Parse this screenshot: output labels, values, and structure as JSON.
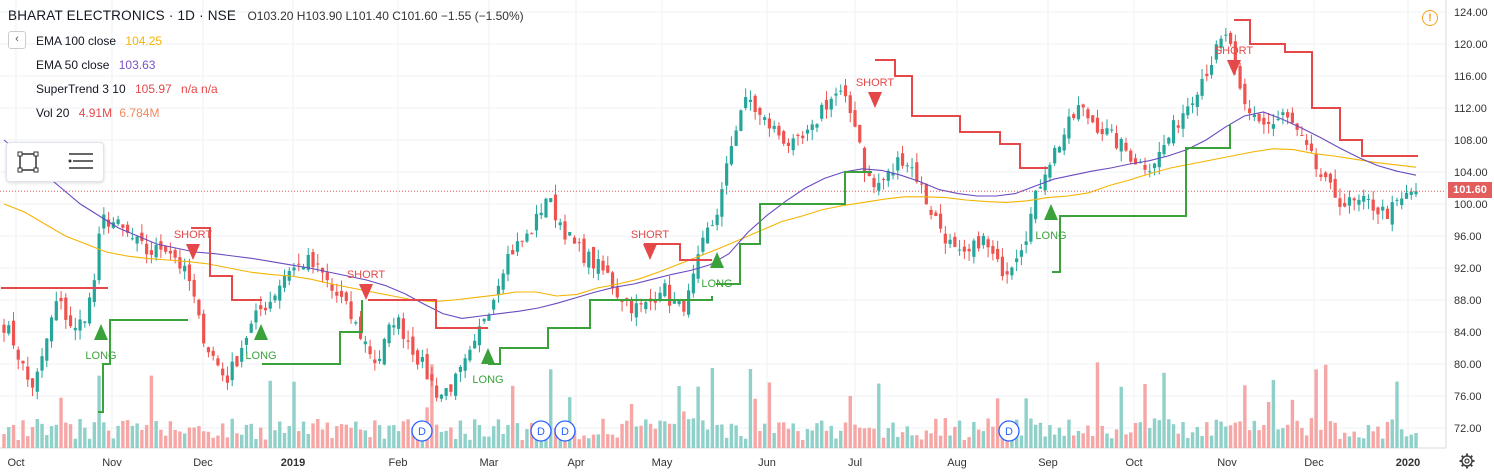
{
  "header": {
    "symbol": "BHARAT ELECTRONICS · 1D · NSE",
    "ohlc": "O103.20 H103.90 L101.40 C101.60 −1.55 (−1.50%)"
  },
  "legend": [
    {
      "label": "EMA 100 close",
      "value": "104.25",
      "value2": "",
      "color": "#f4b400"
    },
    {
      "label": "EMA 50 close",
      "value": "103.63",
      "value2": "",
      "color": "#7a54c5"
    },
    {
      "label": "SuperTrend 3 10",
      "value": "105.97",
      "value2": "n/a n/a",
      "color": "#e54848"
    },
    {
      "label": "Vol 20",
      "value": "4.91M",
      "value2": "6.784M",
      "color": "#e54848"
    }
  ],
  "toggle_glyph": "‹",
  "alert_glyph": "!",
  "last_price_label": "101.60",
  "colors": {
    "up": "#26a69a",
    "down": "#ef5350",
    "ema100": "#f4b400",
    "ema50": "#6a4ac0",
    "st_up": "#3ba23b",
    "st_down": "#e54848",
    "vol_up": "#8fd0c9",
    "vol_down": "#f5a6a5",
    "grid": "#eef0f4"
  },
  "chart_data": {
    "type": "candlestick",
    "y_axis": {
      "min": 70,
      "max": 125,
      "ticks": [
        72,
        76,
        80,
        84,
        88,
        92,
        96,
        100,
        104,
        108,
        112,
        116,
        120,
        124
      ],
      "side": "right"
    },
    "x_axis": {
      "ticks": [
        "Oct",
        "Nov",
        "Dec",
        "2019",
        "Feb",
        "Mar",
        "Apr",
        "May",
        "Jun",
        "Jul",
        "Aug",
        "Sep",
        "Oct",
        "Nov",
        "Dec",
        "2020"
      ]
    },
    "price_path": [
      85,
      83,
      80,
      77,
      79,
      84,
      88,
      86,
      84,
      86,
      89,
      98,
      98,
      97,
      96,
      95,
      94,
      94,
      95,
      94,
      92,
      90,
      85,
      82,
      80,
      78,
      80,
      83,
      85,
      87,
      88,
      90,
      92,
      92,
      93,
      92,
      91,
      89,
      88,
      86,
      84,
      82,
      80,
      83,
      86,
      84,
      82,
      80,
      78,
      76,
      77,
      78,
      80,
      82,
      86,
      88,
      92,
      94,
      95,
      96,
      98,
      101,
      99,
      97,
      95,
      94,
      93,
      92,
      91,
      89,
      88,
      87,
      87,
      88,
      90,
      88,
      87,
      88,
      92,
      96,
      98,
      102,
      108,
      112,
      113,
      111,
      110,
      109,
      108,
      107,
      108,
      109,
      112,
      113,
      114,
      112,
      110,
      104,
      102,
      103,
      104,
      106,
      105,
      103,
      100,
      98,
      96,
      94,
      93,
      94,
      96,
      94,
      92,
      92,
      94,
      96,
      100,
      104,
      106,
      108,
      110,
      112,
      111,
      110,
      109,
      108,
      107,
      106,
      105,
      105,
      106,
      108,
      110,
      112,
      114,
      116,
      118,
      120,
      121,
      114,
      111,
      111,
      110,
      110,
      111,
      110,
      108,
      106,
      104,
      102,
      101,
      100,
      100,
      100,
      100,
      99,
      99,
      100,
      101,
      102
    ],
    "ema100_path": [
      100,
      99,
      97.5,
      96,
      95,
      94,
      93.5,
      93.2,
      93,
      92.8,
      92.5,
      92,
      91.5,
      91.2,
      91,
      90.6,
      90,
      89.5,
      89,
      88.5,
      88,
      87.8,
      88,
      88.3,
      88.6,
      89,
      89,
      88.5,
      88.7,
      89.5,
      90,
      90.6,
      91.5,
      92.5,
      93.5,
      94.5,
      95.6,
      96.7,
      97.8,
      98.5,
      99.3,
      99.8,
      100.2,
      100.6,
      100.9,
      100.9,
      100.8,
      100.5,
      100.3,
      100.2,
      100.4,
      100.8,
      101,
      101.4,
      102.3,
      103,
      103.8,
      104.5,
      105,
      105.5,
      106,
      106.5,
      106.9,
      106.8,
      106.3,
      106,
      105.6,
      105.2,
      104.9,
      104.6
    ],
    "ema50_path": [
      108,
      106,
      104,
      102,
      100,
      98.5,
      97,
      96,
      95,
      94.5,
      94,
      93.8,
      93.5,
      93.2,
      92.8,
      92.4,
      92,
      91.5,
      91,
      90.5,
      89.8,
      88.8,
      87.5,
      86.3,
      85.7,
      86,
      86.3,
      86.6,
      87,
      87.6,
      88.3,
      89,
      89.6,
      90,
      90.6,
      91.2,
      91.7,
      92.4,
      93.8,
      96.5,
      98.6,
      100.4,
      102,
      103.2,
      104,
      104.4,
      104.2,
      103.6,
      102.8,
      101.8,
      101.3,
      101,
      101,
      101.3,
      102.2,
      103.1,
      103.6,
      104.1,
      104.5,
      105,
      105.4,
      106,
      106.8,
      108,
      109.6,
      111,
      111.5,
      110.6,
      109.5,
      108.3,
      107,
      105.8,
      104.8,
      104.1,
      103.6
    ],
    "supertrend": [
      {
        "dir": "down",
        "pts": [
          [
            1,
            89.5
          ],
          [
            108,
            89.5
          ]
        ]
      },
      {
        "dir": "up",
        "pts": [
          [
            98,
            74
          ],
          [
            103,
            80
          ],
          [
            110,
            85.5
          ],
          [
            188,
            85.5
          ]
        ]
      },
      {
        "dir": "down",
        "pts": [
          [
            191,
            97
          ],
          [
            210,
            91
          ],
          [
            232,
            88
          ],
          [
            262,
            88
          ]
        ]
      },
      {
        "dir": "up",
        "pts": [
          [
            262,
            80
          ],
          [
            326,
            80
          ],
          [
            340,
            84
          ],
          [
            362,
            88
          ]
        ]
      },
      {
        "dir": "down",
        "pts": [
          [
            368,
            88
          ],
          [
            436,
            84.5
          ],
          [
            488,
            84.5
          ]
        ]
      },
      {
        "dir": "up",
        "pts": [
          [
            488,
            80
          ],
          [
            500,
            82
          ],
          [
            548,
            84.5
          ],
          [
            590,
            88
          ],
          [
            650,
            88
          ],
          [
            690,
            88
          ],
          [
            712,
            88.5
          ]
        ]
      },
      {
        "dir": "down",
        "pts": [
          [
            644,
            95
          ],
          [
            680,
            93
          ],
          [
            712,
            93
          ]
        ]
      },
      {
        "dir": "up",
        "pts": [
          [
            716,
            90
          ],
          [
            740,
            95
          ],
          [
            760,
            100
          ],
          [
            825,
            100
          ],
          [
            845,
            104
          ],
          [
            872,
            104
          ]
        ]
      },
      {
        "dir": "down",
        "pts": [
          [
            875,
            118
          ],
          [
            895,
            116
          ],
          [
            912,
            111
          ],
          [
            940,
            111
          ],
          [
            960,
            109
          ],
          [
            1000,
            107.5
          ],
          [
            1020,
            104.5
          ],
          [
            1048,
            104.5
          ]
        ]
      },
      {
        "dir": "up",
        "pts": [
          [
            1052,
            91.5
          ],
          [
            1060,
            98.5
          ],
          [
            1168,
            98.5
          ],
          [
            1186,
            107
          ],
          [
            1230,
            110
          ]
        ]
      },
      {
        "dir": "down",
        "pts": [
          [
            1234,
            123
          ],
          [
            1250,
            120
          ],
          [
            1285,
            119
          ],
          [
            1312,
            112
          ],
          [
            1340,
            108
          ],
          [
            1362,
            106
          ],
          [
            1418,
            106
          ]
        ]
      }
    ],
    "signals": [
      {
        "type": "LONG",
        "x": 101,
        "at": 84
      },
      {
        "type": "SHORT",
        "x": 193,
        "at": 94
      },
      {
        "type": "LONG",
        "x": 261,
        "at": 84
      },
      {
        "type": "SHORT",
        "x": 366,
        "at": 89
      },
      {
        "type": "LONG",
        "x": 488,
        "at": 81
      },
      {
        "type": "SHORT",
        "x": 650,
        "at": 94
      },
      {
        "type": "LONG",
        "x": 717,
        "at": 93
      },
      {
        "type": "SHORT",
        "x": 875,
        "at": 113
      },
      {
        "type": "LONG",
        "x": 1051,
        "at": 99
      },
      {
        "type": "SHORT",
        "x": 1234,
        "at": 117
      }
    ],
    "dividends": [
      {
        "x": 422
      },
      {
        "x": 541
      },
      {
        "x": 565
      },
      {
        "x": 1009
      }
    ],
    "dividend_label": "D",
    "last_price": 101.6
  }
}
